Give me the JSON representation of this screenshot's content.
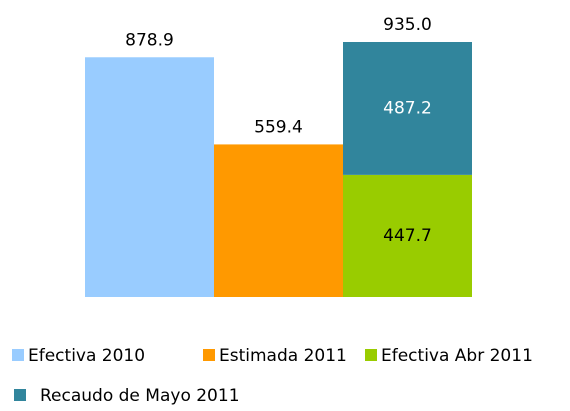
{
  "chart_data": {
    "type": "stacked_bar",
    "categories": [
      null,
      null,
      null
    ],
    "series": [
      {
        "name": "Efectiva 2010",
        "color": "#99ccff",
        "label_color": "#000000",
        "values": [
          878.9,
          null,
          null
        ]
      },
      {
        "name": "Estimada 2011",
        "color": "#ff9900",
        "label_color": "#000000",
        "values": [
          null,
          559.4,
          null
        ]
      },
      {
        "name": "Efectiva Abr 2011",
        "color": "#99cc00",
        "label_color": "#000000",
        "values": [
          null,
          null,
          447.7
        ]
      },
      {
        "name": "Recaudo de Mayo 2011",
        "color": "#31859c",
        "label_color": "#ffffff",
        "values": [
          null,
          null,
          487.2
        ]
      }
    ],
    "totals": [
      null,
      null,
      935
    ],
    "total_labels": [
      null,
      null,
      "935.0"
    ],
    "legend": "bottom"
  }
}
